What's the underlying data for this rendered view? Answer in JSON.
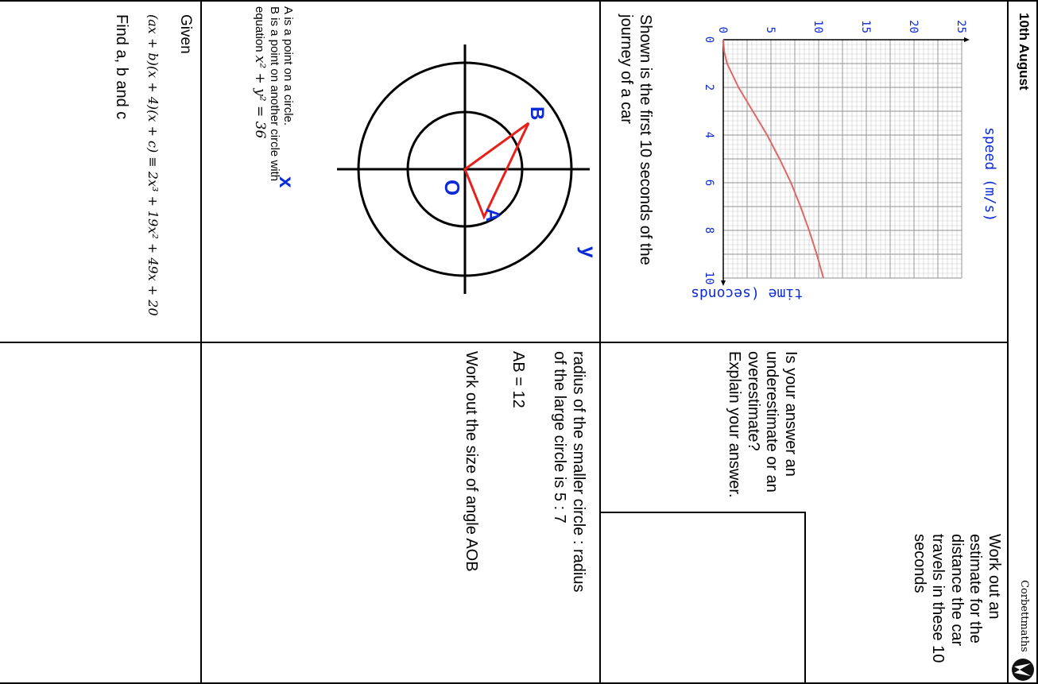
{
  "header": {
    "date": "10th August",
    "logo_text": "Corbettmaths",
    "logo_icon": "corbettmaths-logo-icon"
  },
  "q1": {
    "text": "Shown is the first 10 seconds of the journey of a car",
    "parts": {
      "a": "Work out an estimate for the distance the car travels in these 10 seconds",
      "b": "Is your answer an underestimate or an overestimate? Explain your answer."
    }
  },
  "chart_data": {
    "type": "line",
    "xlabel": "time (seconds)",
    "ylabel": "speed (m/s)",
    "xlim": [
      0,
      10
    ],
    "ylim": [
      0,
      25
    ],
    "x_ticks": [
      "0",
      "2",
      "4",
      "6",
      "8",
      "10"
    ],
    "y_ticks": [
      "0",
      "5",
      "10",
      "15",
      "20",
      "25"
    ],
    "grid": true,
    "series": [
      {
        "color": "#e06666",
        "x": [
          0,
          0.5,
          1,
          1.5,
          2,
          3,
          4,
          5,
          6,
          7,
          8,
          9,
          10
        ],
        "y": [
          0,
          0.1,
          0.4,
          1.0,
          1.6,
          3.1,
          4.6,
          5.9,
          7.1,
          8.1,
          9.0,
          9.8,
          10.5
        ]
      }
    ]
  },
  "q2": {
    "diagram_labels": {
      "a": "A",
      "b": "B",
      "o": "O",
      "x": "x",
      "y": "y"
    },
    "line1": "A is a point on a circle.",
    "line2": "B is a point on another circle with",
    "line3_prefix": "equation ",
    "equation": "x² + y² = 36",
    "ratio_text": "radius of the smaller circle : radius of the large circle is  5 : 7",
    "ab_text": "AB = 12",
    "task": "Work out the size of angle AOB",
    "colors": {
      "triangle": "#e8201c",
      "labels": "#0b2bd8"
    }
  },
  "q3": {
    "given": "Given",
    "identity": "(ax + b)(x + 4)(x + c) ≡ 2x³ + 19x² + 49x + 20",
    "task": "Find a, b and c"
  }
}
